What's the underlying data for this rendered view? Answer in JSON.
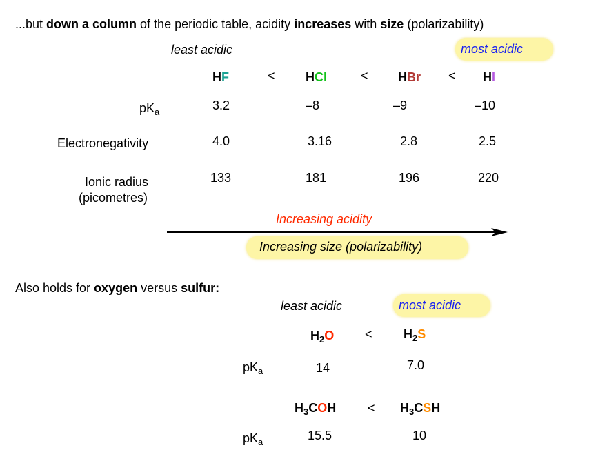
{
  "title": {
    "p1": "...but ",
    "p2": "down a column",
    "p3": " of the periodic table, acidity ",
    "p4": "increases",
    "p5": " with ",
    "p6": "size",
    "p7": " (polarizability)"
  },
  "halides": {
    "least_label": "least acidic",
    "most_label": "most acidic",
    "less_than": "<",
    "formulas": [
      {
        "h": "H",
        "x": "F",
        "color": "#1aa394"
      },
      {
        "h": "H",
        "x": "Cl",
        "color": "#12c21a"
      },
      {
        "h": "H",
        "x": "Br",
        "color": "#b23a36"
      },
      {
        "h": "H",
        "x": "I",
        "color": "#b55ae0"
      }
    ],
    "pka_label": "pK",
    "pka_sub": "a",
    "pka": [
      "3.2",
      "–8",
      "–9",
      "–10"
    ],
    "en_label": "Electronegativity",
    "en": [
      "4.0",
      "3.16",
      "2.8",
      "2.5"
    ],
    "radius_label1": "Ionic radius",
    "radius_label2": "(picometres)",
    "radius": [
      "133",
      "181",
      "196",
      "220"
    ],
    "arrow_label": "Increasing acidity",
    "arrow_color": "#ff2a00",
    "size_label": "Increasing size (polarizability)"
  },
  "oxygen": {
    "heading_p1": "Also holds for ",
    "heading_p2": "oxygen",
    "heading_p3": " versus ",
    "heading_p4": "sulfur:",
    "least_label": "least acidic",
    "most_label": "most acidic",
    "less_than": "<",
    "o_color": "#ff2a00",
    "s_color": "#ff8c00",
    "h2o": {
      "h": "H",
      "sub": "2",
      "x": "O"
    },
    "h2s": {
      "h": "H",
      "sub": "2",
      "x": "S"
    },
    "pka_label": "pK",
    "pka_sub": "a",
    "pka1": [
      "14",
      "7.0"
    ],
    "meoh": {
      "h": "H",
      "sub": "3",
      "c": "C",
      "x": "O",
      "h2": "H"
    },
    "mesh": {
      "h": "H",
      "sub": "3",
      "c": "C",
      "x": "S",
      "h2": "H"
    },
    "pka2": [
      "15.5",
      "10"
    ]
  }
}
